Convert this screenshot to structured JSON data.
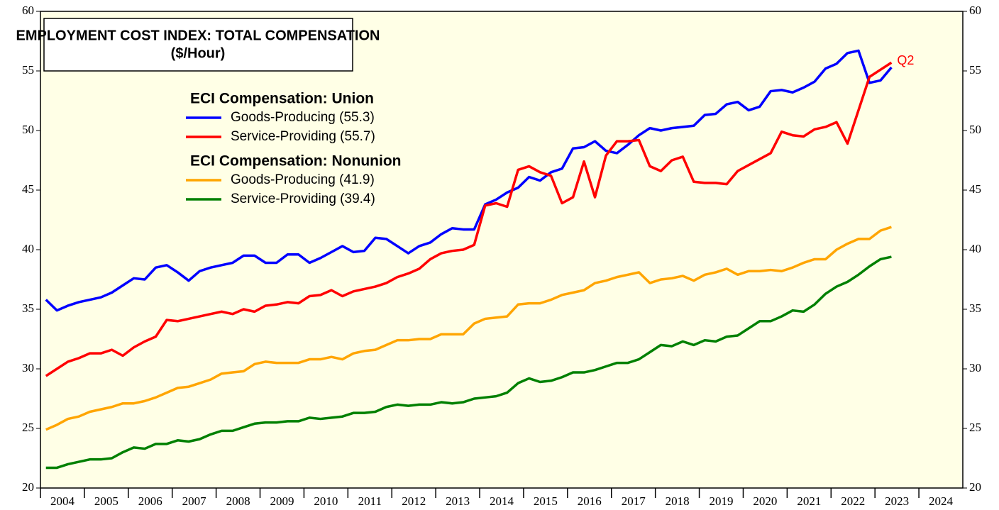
{
  "chart_data": {
    "type": "line",
    "title": "EMPLOYMENT COST INDEX: TOTAL COMPENSATION",
    "subtitle": "($/Hour)",
    "annotation": "Q2",
    "annotation_color": "#ff0000",
    "x": [
      2004.125,
      2004.375,
      2004.625,
      2004.875,
      2005.125,
      2005.375,
      2005.625,
      2005.875,
      2006.125,
      2006.375,
      2006.625,
      2006.875,
      2007.125,
      2007.375,
      2007.625,
      2007.875,
      2008.125,
      2008.375,
      2008.625,
      2008.875,
      2009.125,
      2009.375,
      2009.625,
      2009.875,
      2010.125,
      2010.375,
      2010.625,
      2010.875,
      2011.125,
      2011.375,
      2011.625,
      2011.875,
      2012.125,
      2012.375,
      2012.625,
      2012.875,
      2013.125,
      2013.375,
      2013.625,
      2013.875,
      2014.125,
      2014.375,
      2014.625,
      2014.875,
      2015.125,
      2015.375,
      2015.625,
      2015.875,
      2016.125,
      2016.375,
      2016.625,
      2016.875,
      2017.125,
      2017.375,
      2017.625,
      2017.875,
      2018.125,
      2018.375,
      2018.625,
      2018.875,
      2019.125,
      2019.375,
      2019.625,
      2019.875,
      2020.125,
      2020.375,
      2020.625,
      2020.875,
      2021.125,
      2021.375,
      2021.625,
      2021.875,
      2022.125,
      2022.375,
      2022.625,
      2022.875,
      2023.125,
      2023.375
    ],
    "series": [
      {
        "group": "ECI Compensation: Union",
        "name": "Goods-Producing (55.3)",
        "color": "#0000ff",
        "values": [
          35.8,
          34.9,
          35.3,
          35.6,
          35.8,
          36.0,
          36.4,
          37.0,
          37.6,
          37.5,
          38.5,
          38.7,
          38.1,
          37.4,
          38.2,
          38.5,
          38.7,
          38.9,
          39.5,
          39.5,
          38.9,
          38.9,
          39.6,
          39.6,
          38.9,
          39.3,
          39.8,
          40.3,
          39.8,
          39.9,
          41.0,
          40.9,
          40.3,
          39.7,
          40.3,
          40.6,
          41.3,
          41.8,
          41.7,
          41.7,
          43.8,
          44.2,
          44.8,
          45.2,
          46.1,
          45.8,
          46.5,
          46.8,
          48.5,
          48.6,
          49.1,
          48.3,
          48.1,
          48.8,
          49.6,
          50.2,
          50.0,
          50.2,
          50.3,
          50.4,
          51.3,
          51.4,
          52.2,
          52.4,
          51.7,
          52.0,
          53.3,
          53.4,
          53.2,
          53.6,
          54.1,
          55.2,
          55.6,
          56.5,
          56.7,
          54.0,
          54.2,
          55.3
        ]
      },
      {
        "group": "ECI Compensation: Union",
        "name": "Service-Providing (55.7)",
        "color": "#ff0000",
        "values": [
          29.4,
          30.0,
          30.6,
          30.9,
          31.3,
          31.3,
          31.6,
          31.1,
          31.8,
          32.3,
          32.7,
          34.1,
          34.0,
          34.2,
          34.4,
          34.6,
          34.8,
          34.6,
          35.0,
          34.8,
          35.3,
          35.4,
          35.6,
          35.5,
          36.1,
          36.2,
          36.6,
          36.1,
          36.5,
          36.7,
          36.9,
          37.2,
          37.7,
          38.0,
          38.4,
          39.2,
          39.7,
          39.9,
          40.0,
          40.4,
          43.7,
          43.9,
          43.6,
          46.7,
          47.0,
          46.5,
          46.2,
          43.9,
          44.4,
          47.4,
          44.4,
          47.9,
          49.1,
          49.1,
          49.2,
          47.0,
          46.6,
          47.5,
          47.8,
          45.7,
          45.6,
          45.6,
          45.5,
          46.6,
          47.1,
          47.6,
          48.1,
          49.9,
          49.6,
          49.5,
          50.1,
          50.3,
          50.7,
          48.9,
          51.7,
          54.5,
          55.1,
          55.7
        ]
      },
      {
        "group": "ECI Compensation: Nonunion",
        "name": "Goods-Producing (41.9)",
        "color": "#ffa500",
        "values": [
          24.9,
          25.3,
          25.8,
          26.0,
          26.4,
          26.6,
          26.8,
          27.1,
          27.1,
          27.3,
          27.6,
          28.0,
          28.4,
          28.5,
          28.8,
          29.1,
          29.6,
          29.7,
          29.8,
          30.4,
          30.6,
          30.5,
          30.5,
          30.5,
          30.8,
          30.8,
          31.0,
          30.8,
          31.3,
          31.5,
          31.6,
          32.0,
          32.4,
          32.4,
          32.5,
          32.5,
          32.9,
          32.9,
          32.9,
          33.8,
          34.2,
          34.3,
          34.4,
          35.4,
          35.5,
          35.5,
          35.8,
          36.2,
          36.4,
          36.6,
          37.2,
          37.4,
          37.7,
          37.9,
          38.1,
          37.2,
          37.5,
          37.6,
          37.8,
          37.4,
          37.9,
          38.1,
          38.4,
          37.9,
          38.2,
          38.2,
          38.3,
          38.2,
          38.5,
          38.9,
          39.2,
          39.2,
          40.0,
          40.5,
          40.9,
          40.9,
          41.6,
          41.9
        ]
      },
      {
        "group": "ECI Compensation: Nonunion",
        "name": "Service-Providing (39.4)",
        "color": "#008000",
        "values": [
          21.7,
          21.7,
          22.0,
          22.2,
          22.4,
          22.4,
          22.5,
          23.0,
          23.4,
          23.3,
          23.7,
          23.7,
          24.0,
          23.9,
          24.1,
          24.5,
          24.8,
          24.8,
          25.1,
          25.4,
          25.5,
          25.5,
          25.6,
          25.6,
          25.9,
          25.8,
          25.9,
          26.0,
          26.3,
          26.3,
          26.4,
          26.8,
          27.0,
          26.9,
          27.0,
          27.0,
          27.2,
          27.1,
          27.2,
          27.5,
          27.6,
          27.7,
          28.0,
          28.8,
          29.2,
          28.9,
          29.0,
          29.3,
          29.7,
          29.7,
          29.9,
          30.2,
          30.5,
          30.5,
          30.8,
          31.4,
          32.0,
          31.9,
          32.3,
          32.0,
          32.4,
          32.3,
          32.7,
          32.8,
          33.4,
          34.0,
          34.0,
          34.4,
          34.9,
          34.8,
          35.4,
          36.3,
          36.9,
          37.3,
          37.9,
          38.6,
          39.2,
          39.4
        ]
      }
    ],
    "xlim": [
      2004,
      2025
    ],
    "xticks": [
      2004,
      2005,
      2006,
      2007,
      2008,
      2009,
      2010,
      2011,
      2012,
      2013,
      2014,
      2015,
      2016,
      2017,
      2018,
      2019,
      2020,
      2021,
      2022,
      2023,
      2024
    ],
    "ylim": [
      20,
      60
    ],
    "yticks": [
      20,
      25,
      30,
      35,
      40,
      45,
      50,
      55,
      60
    ],
    "plot_background": "#ffffe6"
  }
}
